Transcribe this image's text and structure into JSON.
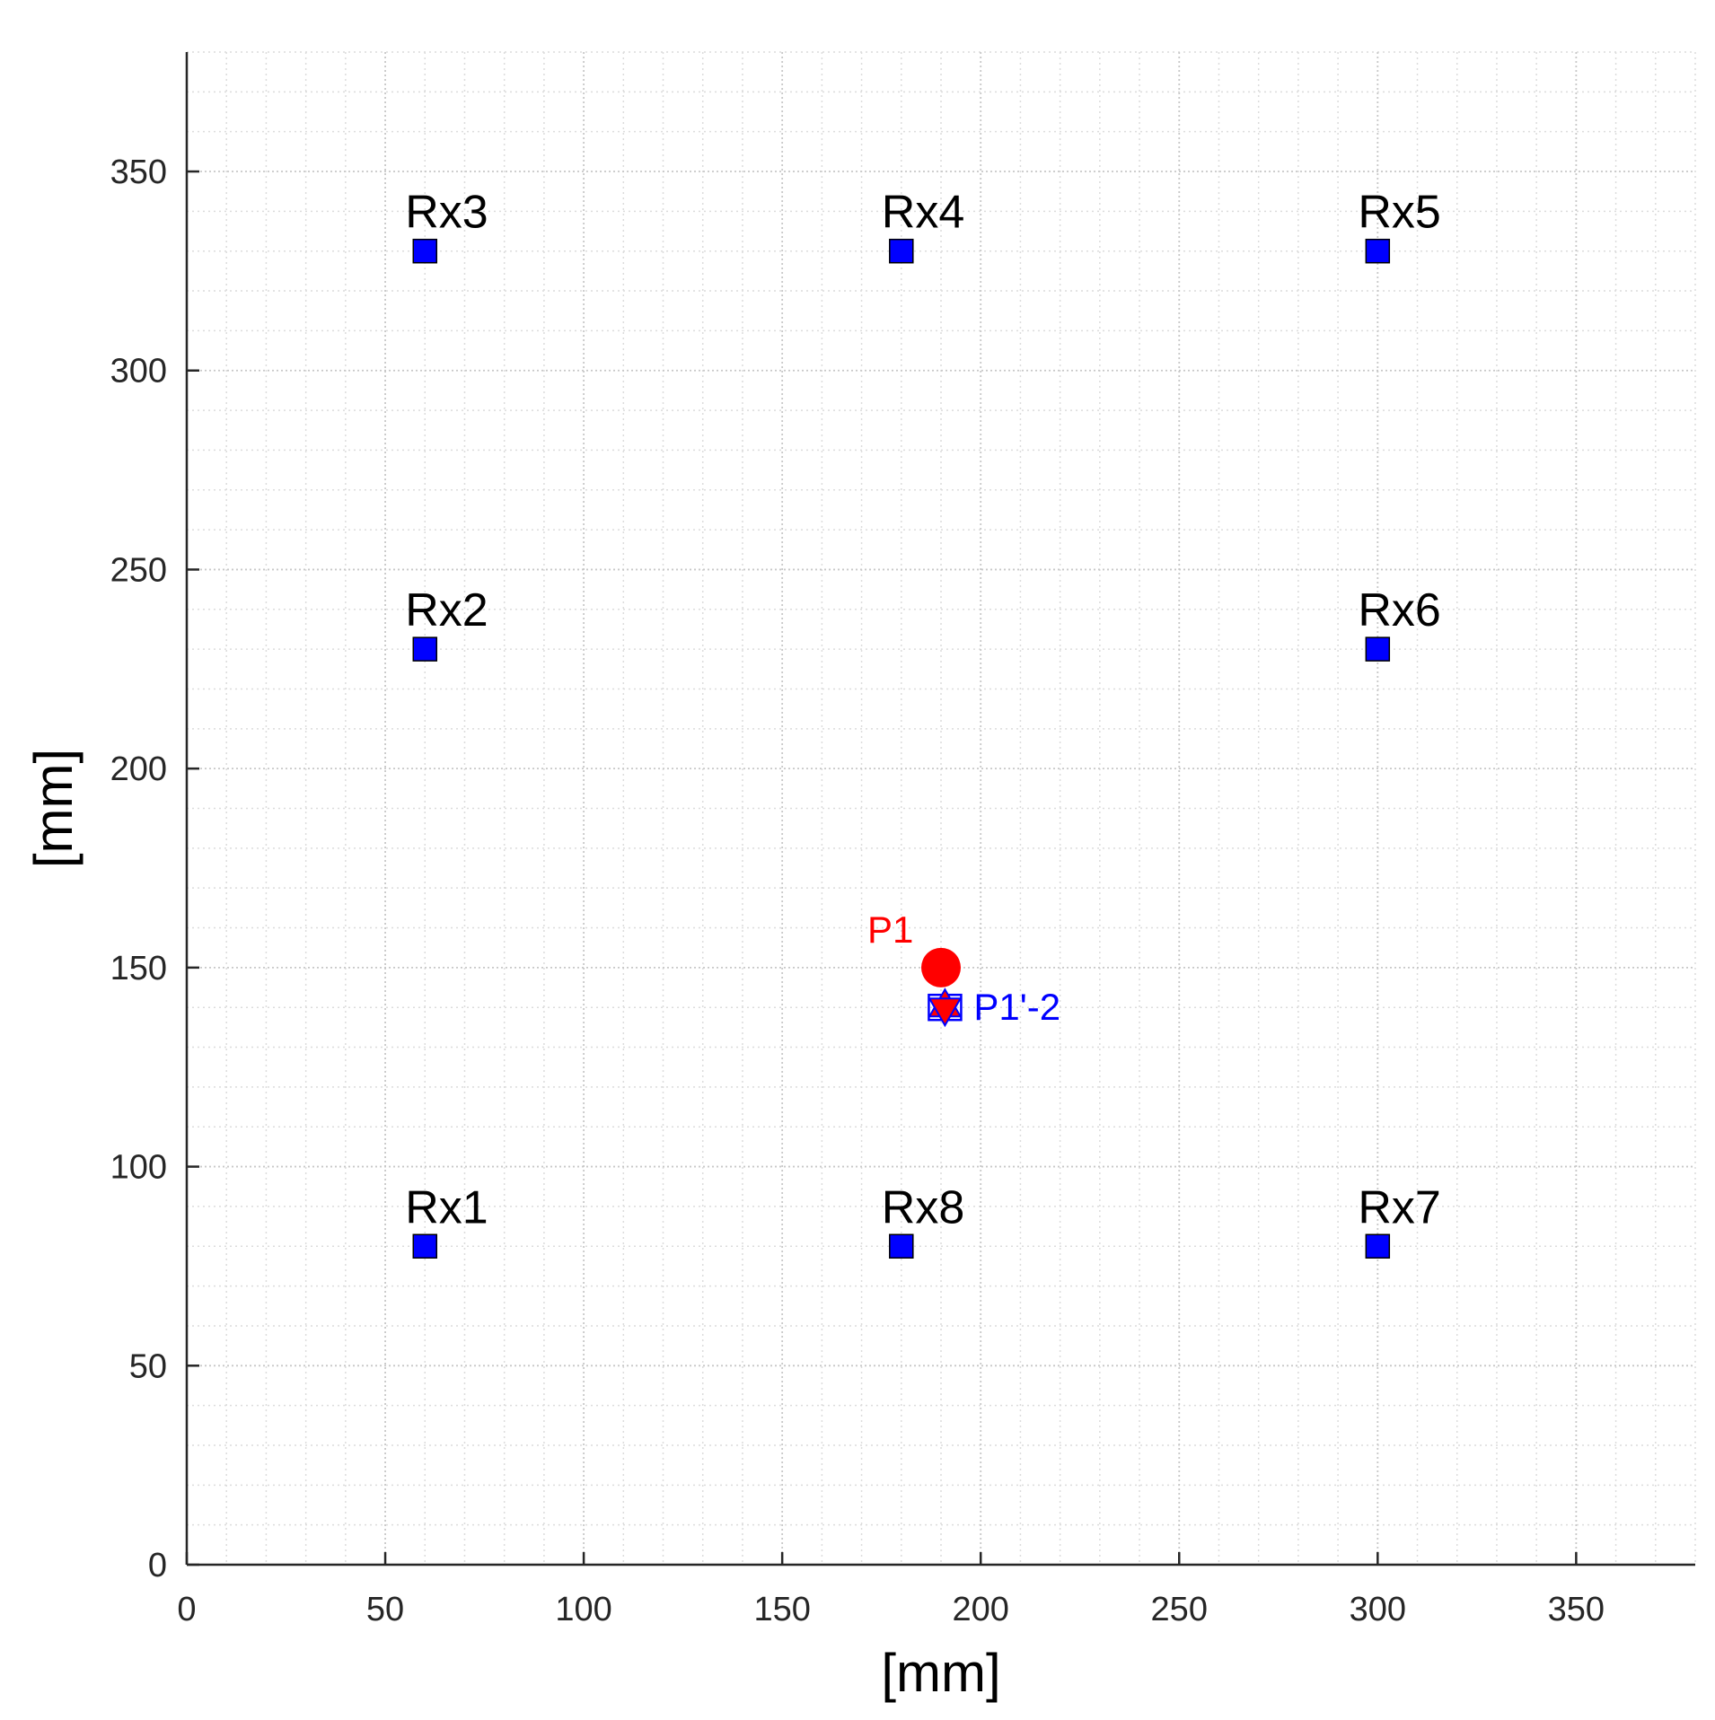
{
  "chart_data": {
    "type": "scatter",
    "xlabel": "[mm]",
    "ylabel": "[mm]",
    "xlim": [
      0,
      380
    ],
    "ylim": [
      0,
      380
    ],
    "xticks": [
      0,
      50,
      100,
      150,
      200,
      250,
      300,
      350
    ],
    "yticks": [
      0,
      50,
      100,
      150,
      200,
      250,
      300,
      350
    ],
    "minor_step": 10,
    "grid": "major and minor, dotted",
    "receivers": {
      "color": "#0000ff",
      "marker": "square",
      "points": [
        {
          "label": "Rx1",
          "x": 60,
          "y": 80
        },
        {
          "label": "Rx2",
          "x": 60,
          "y": 230
        },
        {
          "label": "Rx3",
          "x": 60,
          "y": 330
        },
        {
          "label": "Rx4",
          "x": 180,
          "y": 330
        },
        {
          "label": "Rx5",
          "x": 300,
          "y": 330
        },
        {
          "label": "Rx6",
          "x": 300,
          "y": 230
        },
        {
          "label": "Rx7",
          "x": 300,
          "y": 80
        },
        {
          "label": "Rx8",
          "x": 180,
          "y": 80
        }
      ]
    },
    "true_point": {
      "label": "P1",
      "x": 190,
      "y": 150,
      "color": "#ff0000",
      "marker": "circle"
    },
    "estimated_point": {
      "label": "P1'-2",
      "x": 191,
      "y": 140,
      "color": "#0000ff",
      "star_color": "#ff0000",
      "marker": "hexagram"
    }
  }
}
